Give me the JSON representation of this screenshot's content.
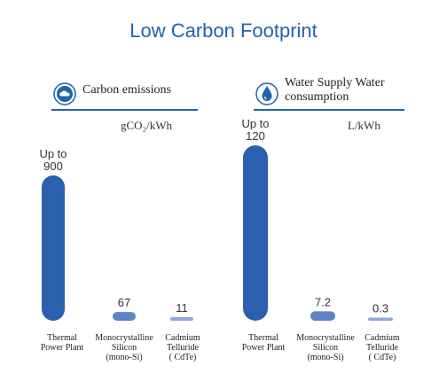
{
  "title": "Low Carbon Footprint",
  "colors": {
    "accent": "#1f63ad",
    "bar_primary": "#2a60ad",
    "bar_secondary": "#5f84c4",
    "bar_tertiary": "#8ea8d8"
  },
  "panels": [
    {
      "heading": "Carbon emissions",
      "icon": "co2-cloud-icon",
      "unit": "gCO₂/kWh",
      "categories": [
        "Thermal\nPower Plant",
        "Monocrystalline\nSilicon\n(mono-Si)",
        "Cadmium\nTelluride\n( CdTe)"
      ],
      "value_labels": [
        "Up to\n900",
        "67",
        "11"
      ]
    },
    {
      "heading": "Water Supply Water consumption",
      "icon": "water-drop-icon",
      "unit": "L/kWh",
      "categories": [
        "Thermal\nPower Plant",
        "Monocrystalline\nSilicon\n(mono-Si)",
        "Cadmium\nTelluride\n( CdTe)"
      ],
      "value_labels": [
        "Up to\n120",
        "7.2",
        "0.3"
      ]
    }
  ],
  "chart_data": [
    {
      "type": "bar",
      "title": "Carbon emissions",
      "ylabel": "gCO₂/kWh",
      "categories": [
        "Thermal Power Plant",
        "Monocrystalline Silicon (mono-Si)",
        "Cadmium Telluride (CdTe)"
      ],
      "values": [
        900,
        67,
        11
      ],
      "grid": false,
      "legend": "none"
    },
    {
      "type": "bar",
      "title": "Water Supply Water consumption",
      "ylabel": "L/kWh",
      "categories": [
        "Thermal Power Plant",
        "Monocrystalline Silicon (mono-Si)",
        "Cadmium Telluride (CdTe)"
      ],
      "values": [
        120,
        7.2,
        0.3
      ],
      "grid": false,
      "legend": "none"
    }
  ]
}
